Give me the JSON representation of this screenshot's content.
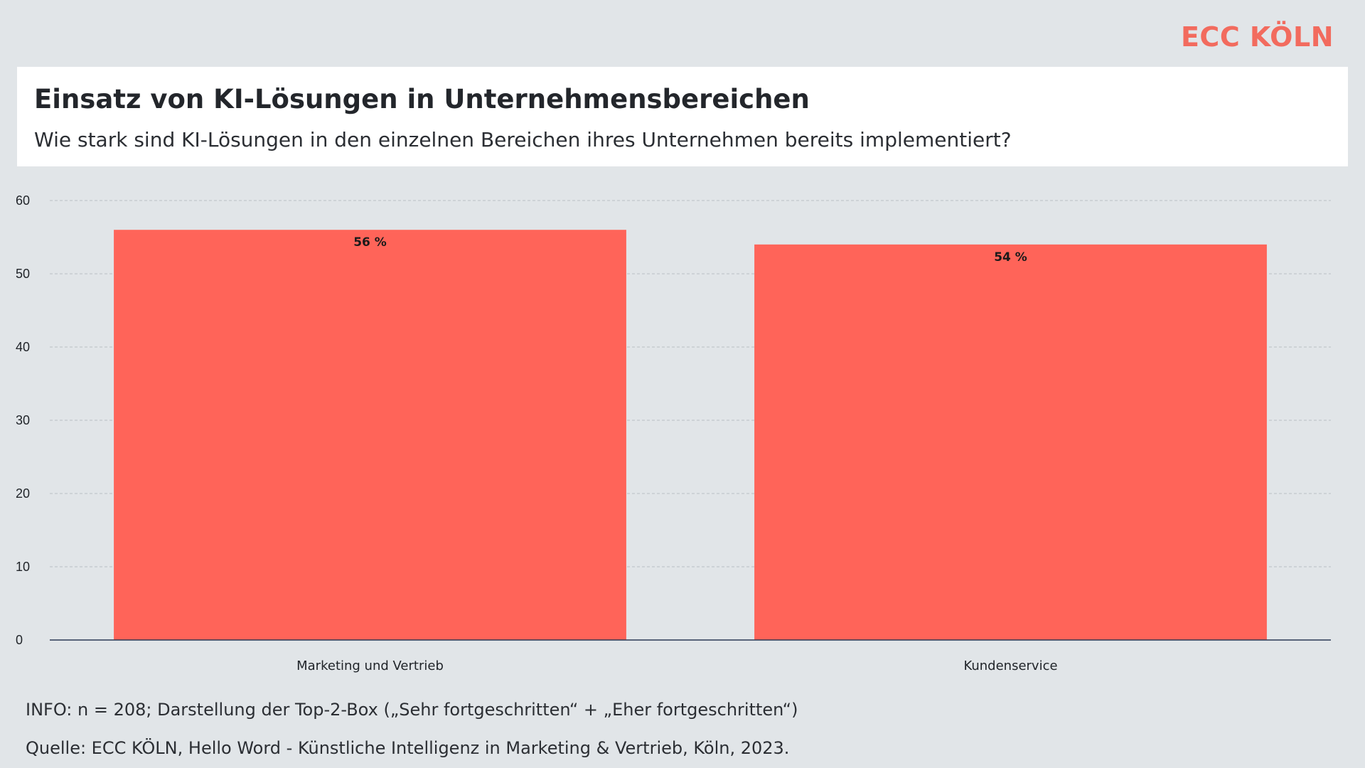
{
  "brand": {
    "logo_text": "ECC KÖLN",
    "accent_color": "#ff6459"
  },
  "header": {
    "title": "Einsatz von KI-Lösungen in Unternehmensbereichen",
    "subtitle": "Wie stark sind KI-Lösungen in den einzelnen Bereichen ihres Unternehmen bereits implementiert?"
  },
  "chart_data": {
    "type": "bar",
    "categories": [
      "Marketing und Vertrieb",
      "Kundenservice"
    ],
    "values": [
      56,
      54
    ],
    "value_labels": [
      "56 %",
      "54 %"
    ],
    "ylim": [
      0,
      60
    ],
    "yticks": [
      0,
      10,
      20,
      30,
      40,
      50,
      60
    ],
    "grid": true,
    "bar_color": "#ff6459"
  },
  "footer": {
    "info": "INFO: n = 208; Darstellung der Top-2-Box („Sehr fortgeschritten“ + „Eher fortgeschritten“)",
    "source": "Quelle: ECC KÖLN, Hello Word - Künstliche Intelligenz in Marketing & Vertrieb, Köln, 2023."
  }
}
